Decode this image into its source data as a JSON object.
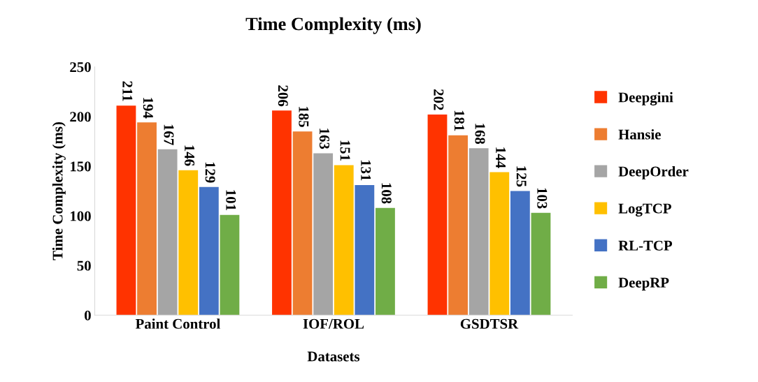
{
  "chart_data": {
    "type": "bar",
    "title": "Time Complexity (ms)",
    "xlabel": "Datasets",
    "ylabel": "Time Complexity (ms)",
    "categories": [
      "Paint Control",
      "IOF/ROL",
      "GSDTSR"
    ],
    "series": [
      {
        "name": "Deepgini",
        "color": "#ff3300",
        "values": [
          211,
          206,
          202
        ]
      },
      {
        "name": "Hansie",
        "color": "#ed7d31",
        "values": [
          194,
          185,
          181
        ]
      },
      {
        "name": "DeepOrder",
        "color": "#a5a5a5",
        "values": [
          167,
          163,
          168
        ]
      },
      {
        "name": "LogTCP",
        "color": "#ffc000",
        "values": [
          146,
          151,
          144
        ]
      },
      {
        "name": "RL-TCP",
        "color": "#4472c4",
        "values": [
          129,
          131,
          125
        ]
      },
      {
        "name": "DeepRP",
        "color": "#70ad47",
        "values": [
          101,
          108,
          103
        ]
      }
    ],
    "ylim": [
      0,
      250
    ],
    "yticks": [
      0,
      50,
      100,
      150,
      200,
      250
    ],
    "grid": false,
    "legend": "right",
    "data_labels": true
  }
}
